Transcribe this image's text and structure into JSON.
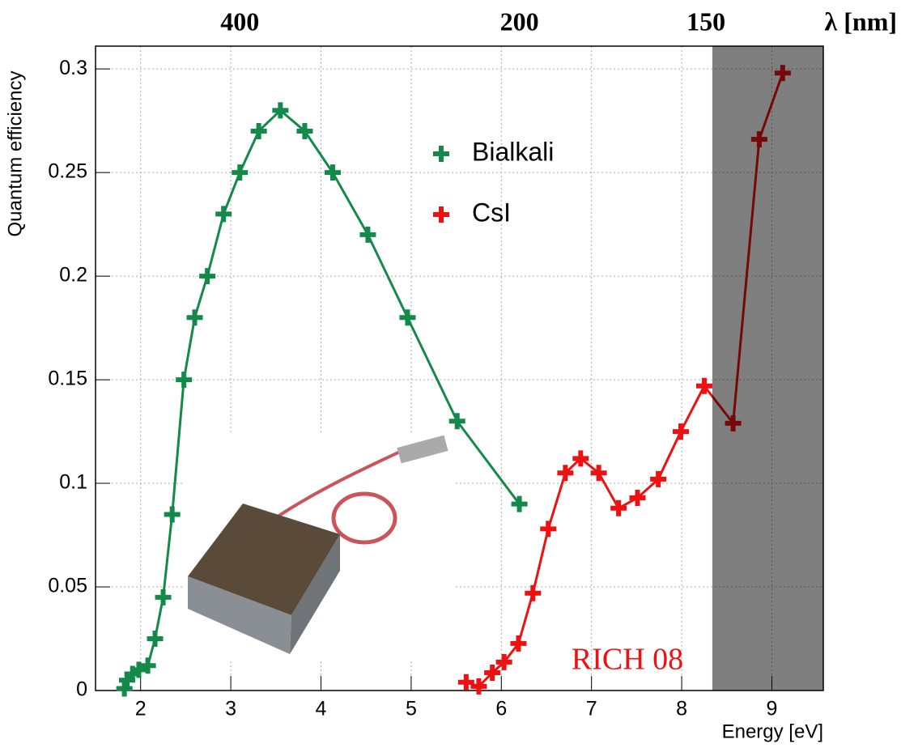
{
  "chart_data": {
    "type": "line",
    "x_label": "Energy [eV]",
    "y_label": "Quantum efficiency",
    "x2_label": "λ [nm]",
    "annotation": "RICH 08",
    "xlim": [
      1.5,
      9.57
    ],
    "ylim": [
      0,
      0.311
    ],
    "xticks": [
      2,
      3,
      4,
      5,
      6,
      7,
      8,
      9
    ],
    "yticks": [
      0,
      0.05,
      0.1,
      0.15,
      0.2,
      0.25,
      0.3
    ],
    "x2ticks": [
      {
        "value": 3.1,
        "label": "400"
      },
      {
        "value": 6.2,
        "label": "200"
      },
      {
        "value": 8.27,
        "label": "150"
      }
    ],
    "grid": true,
    "legend_position": "top-center",
    "shaded_xrange": [
      8.34,
      9.57
    ],
    "series": [
      {
        "name": "Bialkali",
        "color": "#13894a",
        "x": [
          1.82,
          1.85,
          1.91,
          1.98,
          2.08,
          2.16,
          2.25,
          2.35,
          2.48,
          2.6,
          2.74,
          2.92,
          3.1,
          3.31,
          3.55,
          3.82,
          4.13,
          4.52,
          4.96,
          5.51,
          6.2
        ],
        "values": [
          0.001,
          0.005,
          0.008,
          0.01,
          0.012,
          0.025,
          0.045,
          0.085,
          0.15,
          0.18,
          0.2,
          0.23,
          0.25,
          0.27,
          0.28,
          0.27,
          0.25,
          0.22,
          0.18,
          0.13,
          0.09
        ]
      },
      {
        "name": "CsI",
        "color": "#ee1111",
        "x": [
          5.61,
          5.75,
          5.9,
          6.03,
          6.19,
          6.35,
          6.52,
          6.71,
          6.88,
          7.08,
          7.3,
          7.51,
          7.74,
          7.99,
          8.25,
          8.57,
          8.86,
          9.12
        ],
        "values": [
          0.004,
          0.002,
          0.0086,
          0.0137,
          0.0227,
          0.047,
          0.078,
          0.105,
          0.112,
          0.105,
          0.088,
          0.093,
          0.102,
          0.125,
          0.147,
          0.129,
          0.266,
          0.298
        ]
      }
    ]
  }
}
